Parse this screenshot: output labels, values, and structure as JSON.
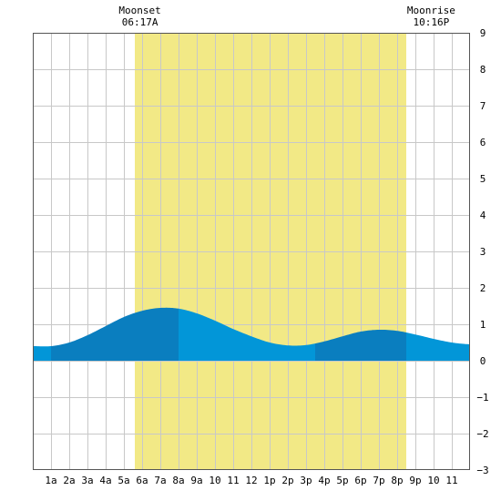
{
  "chart_data": {
    "type": "area",
    "title": "",
    "xlabel": "",
    "ylabel": "",
    "xlim": [
      0,
      24
    ],
    "ylim": [
      -3,
      9
    ],
    "grid": true,
    "y_ticks": [
      -3,
      -2,
      -1,
      0,
      1,
      2,
      3,
      4,
      5,
      6,
      7,
      8,
      9
    ],
    "x_ticks": [
      {
        "x": 1,
        "label": "1a"
      },
      {
        "x": 2,
        "label": "2a"
      },
      {
        "x": 3,
        "label": "3a"
      },
      {
        "x": 4,
        "label": "4a"
      },
      {
        "x": 5,
        "label": "5a"
      },
      {
        "x": 6,
        "label": "6a"
      },
      {
        "x": 7,
        "label": "7a"
      },
      {
        "x": 8,
        "label": "8a"
      },
      {
        "x": 9,
        "label": "9a"
      },
      {
        "x": 10,
        "label": "10"
      },
      {
        "x": 11,
        "label": "11"
      },
      {
        "x": 12,
        "label": "12"
      },
      {
        "x": 13,
        "label": "1p"
      },
      {
        "x": 14,
        "label": "2p"
      },
      {
        "x": 15,
        "label": "3p"
      },
      {
        "x": 16,
        "label": "4p"
      },
      {
        "x": 17,
        "label": "5p"
      },
      {
        "x": 18,
        "label": "6p"
      },
      {
        "x": 19,
        "label": "7p"
      },
      {
        "x": 20,
        "label": "8p"
      },
      {
        "x": 21,
        "label": "9p"
      },
      {
        "x": 22,
        "label": "10"
      },
      {
        "x": 23,
        "label": "11"
      }
    ],
    "moon_up_band": {
      "start": 5.6,
      "end": 20.5
    },
    "events": [
      {
        "name": "Moonset",
        "time": "06:17A",
        "x": 6.28
      },
      {
        "name": "Moonrise",
        "time": "10:16P",
        "x": 22.27
      }
    ],
    "series": [
      {
        "x": [
          0,
          1,
          2,
          3,
          4,
          5,
          6,
          7,
          8,
          9,
          10,
          11,
          12,
          13,
          14,
          15,
          16,
          17,
          18,
          19,
          20,
          21,
          22,
          23,
          24
        ],
        "values": [
          0.4,
          0.4,
          0.5,
          0.7,
          0.95,
          1.2,
          1.37,
          1.45,
          1.43,
          1.3,
          1.1,
          0.87,
          0.67,
          0.5,
          0.42,
          0.43,
          0.53,
          0.67,
          0.8,
          0.85,
          0.82,
          0.72,
          0.6,
          0.5,
          0.45
        ]
      }
    ],
    "tide_phase_boundaries": [
      1.0,
      8.0,
      15.5,
      20.5
    ],
    "colors": {
      "moon_band": "#f2e986",
      "water_dark": "#0a7ebf",
      "water_light": "#0296d8",
      "grid": "#c8c8c8",
      "frame": "#555555"
    }
  }
}
